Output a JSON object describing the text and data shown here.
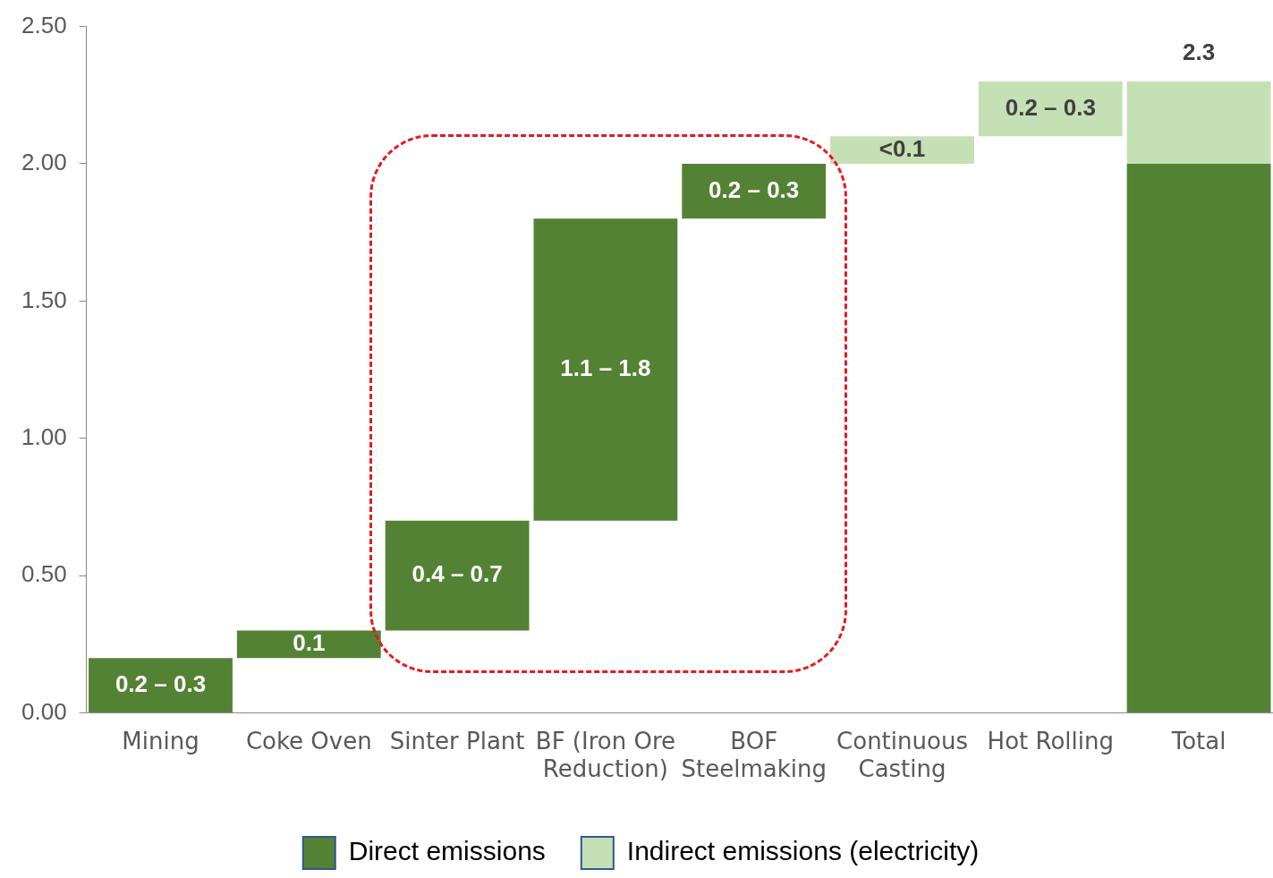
{
  "chart_data": {
    "type": "bar",
    "categories": [
      "Mining",
      "Coke Oven",
      "Sinter Plant",
      "BF (Iron Ore Reduction)",
      "BOF Steelmaking",
      "Continuous Casting",
      "Hot Rolling",
      "Total"
    ],
    "series": [
      {
        "name": "Direct emissions",
        "color": "#548235",
        "values": [
          0.2,
          0.1,
          0.4,
          1.1,
          0.2,
          null,
          null,
          2.0
        ],
        "base": [
          0,
          0.2,
          0.3,
          0.7,
          1.8,
          null,
          null,
          0
        ],
        "value_labels": [
          "0.2 – 0.3",
          "0.1",
          "0.4 – 0.7",
          "1.1 – 1.8",
          "0.2 – 0.3",
          null,
          null,
          null
        ]
      },
      {
        "name": "Indirect emissions (electricity)",
        "color": "#c5e0b4",
        "values": [
          null,
          null,
          null,
          null,
          null,
          0.1,
          0.2,
          0.3
        ],
        "base": [
          null,
          null,
          null,
          null,
          null,
          2.0,
          2.1,
          2.0
        ],
        "value_labels": [
          null,
          null,
          null,
          null,
          null,
          "<0.1",
          "0.2 – 0.3",
          null
        ]
      }
    ],
    "totals": [
      null,
      null,
      null,
      null,
      null,
      null,
      null,
      "2.3"
    ],
    "ylim": [
      0,
      2.5
    ],
    "yticks": [
      {
        "value": 0,
        "label": "0.00"
      },
      {
        "value": 0.5,
        "label": "0.50"
      },
      {
        "value": 1,
        "label": "1.00"
      },
      {
        "value": 1.5,
        "label": "1.50"
      },
      {
        "value": 2,
        "label": "2.00"
      },
      {
        "value": 2.5,
        "label": "2.50"
      }
    ],
    "grid": false,
    "legend": "bottom"
  }
}
